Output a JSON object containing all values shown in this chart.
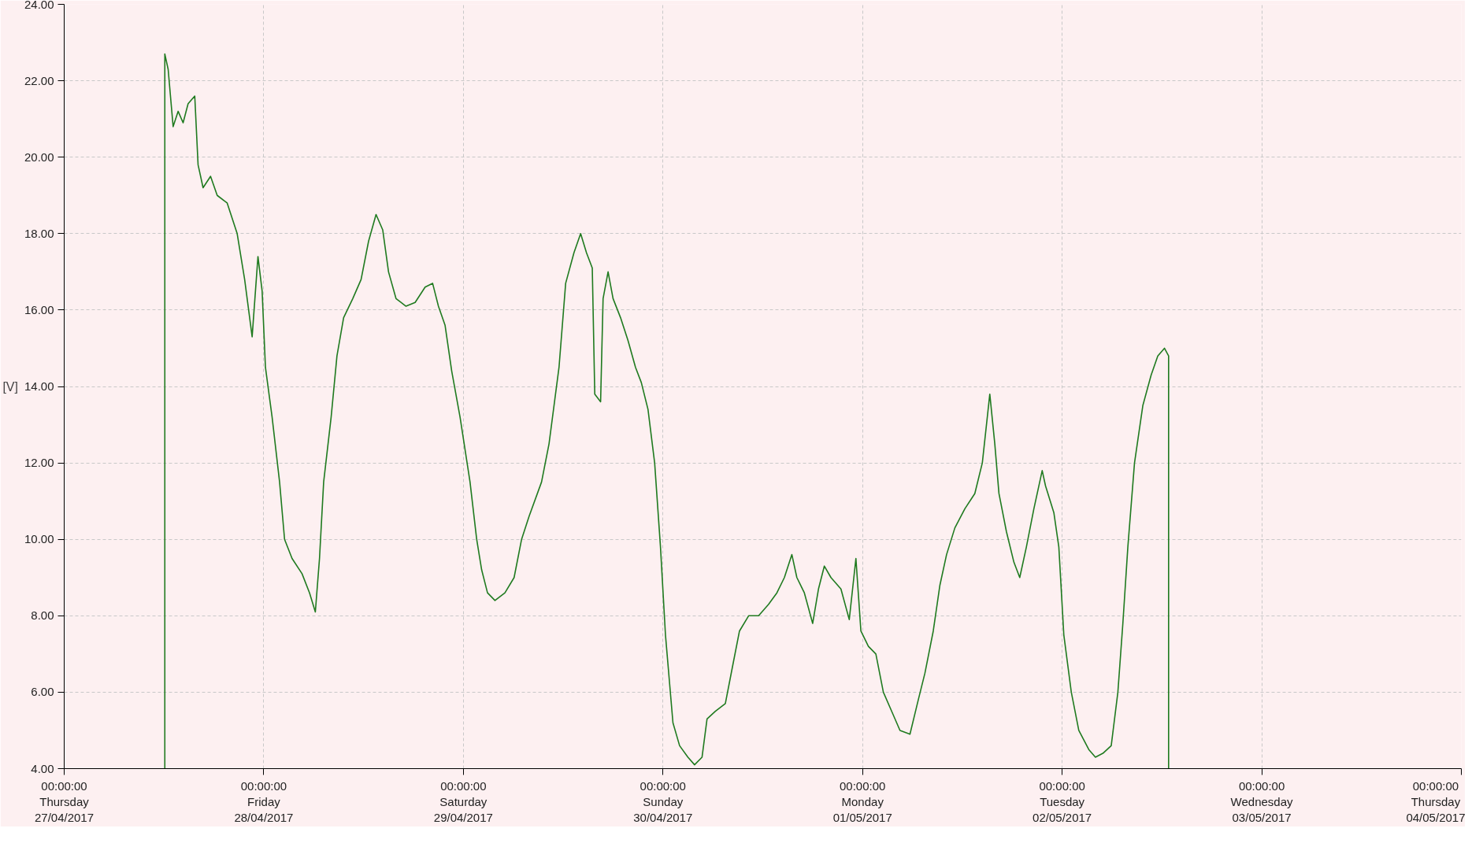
{
  "chart_data": {
    "type": "line",
    "ylabel": "[V]",
    "x": [
      "2017-04-27T12:06",
      "2017-04-27T12:06",
      "2017-04-27T12:30",
      "2017-04-27T13:06",
      "2017-04-27T13:42",
      "2017-04-27T14:18",
      "2017-04-27T14:54",
      "2017-04-27T15:42",
      "2017-04-27T16:06",
      "2017-04-27T16:42",
      "2017-04-27T17:36",
      "2017-04-27T18:24",
      "2017-04-27T19:36",
      "2017-04-27T20:48",
      "2017-04-27T21:42",
      "2017-04-27T22:36",
      "2017-04-27T23:18",
      "2017-04-27T23:48",
      "2017-04-28T00:12",
      "2017-04-28T01:00",
      "2017-04-28T01:54",
      "2017-04-28T02:30",
      "2017-04-28T03:24",
      "2017-04-28T04:36",
      "2017-04-28T05:30",
      "2017-04-28T06:12",
      "2017-04-28T06:42",
      "2017-04-28T07:12",
      "2017-04-28T08:06",
      "2017-04-28T08:48",
      "2017-04-28T09:36",
      "2017-04-28T10:42",
      "2017-04-28T11:42",
      "2017-04-28T12:36",
      "2017-04-28T13:30",
      "2017-04-28T14:18",
      "2017-04-28T15:00",
      "2017-04-28T15:54",
      "2017-04-28T17:06",
      "2017-04-28T18:12",
      "2017-04-28T19:24",
      "2017-04-28T20:18",
      "2017-04-28T21:00",
      "2017-04-28T21:48",
      "2017-04-28T22:36",
      "2017-04-28T23:36",
      "2017-04-29T00:48",
      "2017-04-29T01:36",
      "2017-04-29T02:12",
      "2017-04-29T02:54",
      "2017-04-29T03:48",
      "2017-04-29T05:00",
      "2017-04-29T06:06",
      "2017-04-29T07:00",
      "2017-04-29T07:54",
      "2017-04-29T09:24",
      "2017-04-29T10:18",
      "2017-04-29T11:30",
      "2017-04-29T12:18",
      "2017-04-29T13:18",
      "2017-04-29T14:06",
      "2017-04-29T14:48",
      "2017-04-29T15:30",
      "2017-04-29T15:48",
      "2017-04-29T16:30",
      "2017-04-29T16:48",
      "2017-04-29T17:24",
      "2017-04-29T18:00",
      "2017-04-29T18:54",
      "2017-04-29T19:48",
      "2017-04-29T20:42",
      "2017-04-29T21:24",
      "2017-04-29T22:12",
      "2017-04-29T23:00",
      "2017-04-29T23:42",
      "2017-04-30T00:18",
      "2017-04-30T01:12",
      "2017-04-30T02:00",
      "2017-04-30T03:00",
      "2017-04-30T03:48",
      "2017-04-30T04:42",
      "2017-04-30T05:18",
      "2017-04-30T06:18",
      "2017-04-30T07:30",
      "2017-04-30T08:18",
      "2017-04-30T09:12",
      "2017-04-30T10:18",
      "2017-04-30T11:30",
      "2017-04-30T12:42",
      "2017-04-30T13:42",
      "2017-04-30T14:36",
      "2017-04-30T15:30",
      "2017-04-30T16:06",
      "2017-04-30T17:00",
      "2017-04-30T18:00",
      "2017-04-30T18:42",
      "2017-04-30T19:24",
      "2017-04-30T20:12",
      "2017-04-30T21:24",
      "2017-04-30T22:24",
      "2017-04-30T23:12",
      "2017-04-30T23:48",
      "2017-05-01T00:42",
      "2017-05-01T01:36",
      "2017-05-01T02:30",
      "2017-05-01T03:42",
      "2017-05-01T04:30",
      "2017-05-01T05:42",
      "2017-05-01T06:42",
      "2017-05-01T07:30",
      "2017-05-01T08:30",
      "2017-05-01T09:18",
      "2017-05-01T10:06",
      "2017-05-01T11:06",
      "2017-05-01T12:18",
      "2017-05-01T13:30",
      "2017-05-01T14:24",
      "2017-05-01T15:18",
      "2017-05-01T15:54",
      "2017-05-01T16:24",
      "2017-05-01T17:18",
      "2017-05-01T18:12",
      "2017-05-01T18:54",
      "2017-05-01T19:42",
      "2017-05-01T20:36",
      "2017-05-01T21:36",
      "2017-05-01T22:00",
      "2017-05-01T23:00",
      "2017-05-01T23:36",
      "2017-05-02T00:12",
      "2017-05-02T01:06",
      "2017-05-02T02:00",
      "2017-05-02T03:12",
      "2017-05-02T04:00",
      "2017-05-02T04:54",
      "2017-05-02T05:54",
      "2017-05-02T06:42",
      "2017-05-02T07:18",
      "2017-05-02T07:54",
      "2017-05-02T08:42",
      "2017-05-02T09:42",
      "2017-05-02T10:42",
      "2017-05-02T11:30",
      "2017-05-02T12:18",
      "2017-05-02T12:48",
      "2017-05-02T12:48"
    ],
    "series": [
      {
        "color": "#1f7a1f",
        "values": [
          4.0,
          22.7,
          22.3,
          20.8,
          21.2,
          20.9,
          21.4,
          21.6,
          19.8,
          19.2,
          19.5,
          19.0,
          18.8,
          18.0,
          16.8,
          15.3,
          17.4,
          16.5,
          14.5,
          13.2,
          11.5,
          10.0,
          9.5,
          9.1,
          8.6,
          8.1,
          9.5,
          11.5,
          13.2,
          14.8,
          15.8,
          16.3,
          16.8,
          17.8,
          18.5,
          18.1,
          17.0,
          16.3,
          16.1,
          16.2,
          16.6,
          16.7,
          16.1,
          15.6,
          14.4,
          13.2,
          11.5,
          10.0,
          9.2,
          8.6,
          8.4,
          8.6,
          9.0,
          10.0,
          10.6,
          11.5,
          12.5,
          14.5,
          16.7,
          17.5,
          18.0,
          17.5,
          17.1,
          13.8,
          13.6,
          16.3,
          17.0,
          16.3,
          15.8,
          15.2,
          14.5,
          14.1,
          13.4,
          12.0,
          9.8,
          7.5,
          5.2,
          4.6,
          4.3,
          4.1,
          4.3,
          5.3,
          5.5,
          5.7,
          6.6,
          7.6,
          8.0,
          8.0,
          8.3,
          8.6,
          9.0,
          9.6,
          9.0,
          8.6,
          7.8,
          8.7,
          9.3,
          9.0,
          8.7,
          7.9,
          9.5,
          7.6,
          7.2,
          7.0,
          6.0,
          5.4,
          5.0,
          4.9,
          5.8,
          6.5,
          7.6,
          8.8,
          9.6,
          10.3,
          10.8,
          11.2,
          12.0,
          13.8,
          12.5,
          11.2,
          10.2,
          9.4,
          9.0,
          9.8,
          10.8,
          11.8,
          11.4,
          10.7,
          9.8,
          7.5,
          6.0,
          5.0,
          4.5,
          4.3,
          4.4,
          4.6,
          6.0,
          7.8,
          9.8,
          12.0,
          13.5,
          14.3,
          14.8,
          15.0,
          14.8,
          4.0
        ]
      }
    ],
    "xlim": [
      "2017-04-27T00:00",
      "2017-05-04T00:00"
    ],
    "xticks": [
      {
        "value": "2017-04-27T00:00",
        "label": "00:00:00\nThursday\n27/04/2017"
      },
      {
        "value": "2017-04-28T00:00",
        "label": "00:00:00\nFriday\n28/04/2017"
      },
      {
        "value": "2017-04-29T00:00",
        "label": "00:00:00\nSaturday\n29/04/2017"
      },
      {
        "value": "2017-04-30T00:00",
        "label": "00:00:00\nSunday\n30/04/2017"
      },
      {
        "value": "2017-05-01T00:00",
        "label": "00:00:00\nMonday\n01/05/2017"
      },
      {
        "value": "2017-05-02T00:00",
        "label": "00:00:00\nTuesday\n02/05/2017"
      },
      {
        "value": "2017-05-03T00:00",
        "label": "00:00:00\nWednesday\n03/05/2017"
      },
      {
        "value": "2017-05-04T00:00",
        "label": "00:00:00\nThursday\n04/05/2017"
      }
    ],
    "ylim": [
      4,
      24
    ],
    "yticks": [
      {
        "value": 4,
        "label": "4.00"
      },
      {
        "value": 6,
        "label": "6.00"
      },
      {
        "value": 8,
        "label": "8.00"
      },
      {
        "value": 10,
        "label": "10.00"
      },
      {
        "value": 12,
        "label": "12.00"
      },
      {
        "value": 14,
        "label": "14.00"
      },
      {
        "value": 16,
        "label": "16.00"
      },
      {
        "value": 18,
        "label": "18.00"
      },
      {
        "value": 20,
        "label": "20.00"
      },
      {
        "value": 22,
        "label": "22.00"
      },
      {
        "value": 24,
        "label": "24.00"
      }
    ],
    "grid": true,
    "marker": "none",
    "line_style": "solid"
  }
}
